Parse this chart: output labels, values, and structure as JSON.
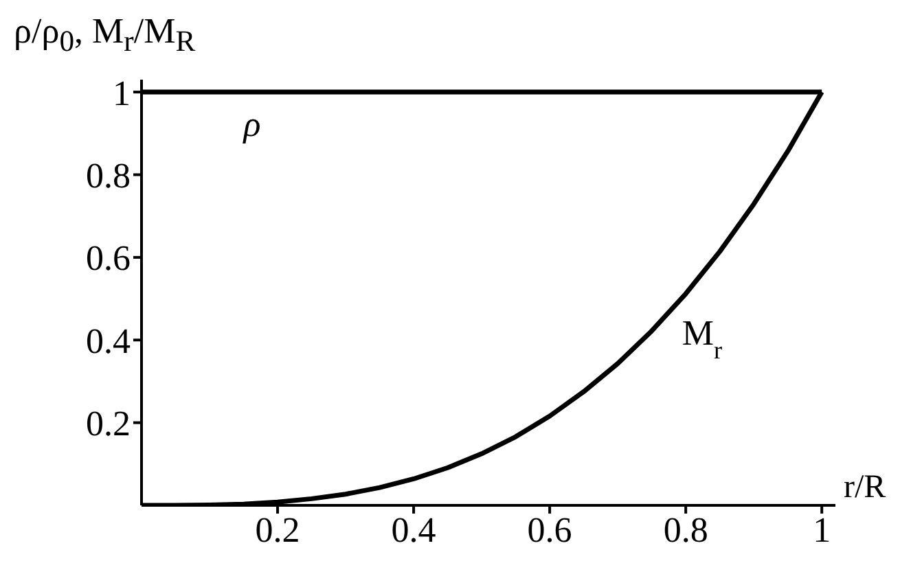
{
  "chart_data": {
    "type": "line",
    "xlabel": "r/R",
    "ylabel": "ρ/ρ$_{0}$, M$_{r}$/M$_{R}$",
    "x": [
      0,
      0.05,
      0.1,
      0.15,
      0.2,
      0.25,
      0.3,
      0.35,
      0.4,
      0.45,
      0.5,
      0.55,
      0.6,
      0.65,
      0.7,
      0.75,
      0.8,
      0.85,
      0.9,
      0.95,
      1
    ],
    "series": [
      {
        "name": "ρ",
        "color": "#000000",
        "values": [
          1,
          1,
          1,
          1,
          1,
          1,
          1,
          1,
          1,
          1,
          1,
          1,
          1,
          1,
          1,
          1,
          1,
          1,
          1,
          1,
          1
        ]
      },
      {
        "name": "M$_{r}$",
        "color": "#000000",
        "values": [
          0,
          0,
          0.001,
          0.003,
          0.008,
          0.016,
          0.027,
          0.043,
          0.064,
          0.091,
          0.125,
          0.166,
          0.216,
          0.275,
          0.343,
          0.422,
          0.512,
          0.614,
          0.729,
          0.857,
          1
        ]
      }
    ],
    "xlim": [
      0,
      1.02
    ],
    "ylim": [
      0,
      1.03
    ],
    "xticks": [
      0.2,
      0.4,
      0.6,
      0.8,
      1
    ],
    "yticks": [
      0.2,
      0.4,
      0.6,
      0.8,
      1
    ],
    "grid": false,
    "legend": false,
    "marker": "none",
    "line_style": "solid"
  }
}
